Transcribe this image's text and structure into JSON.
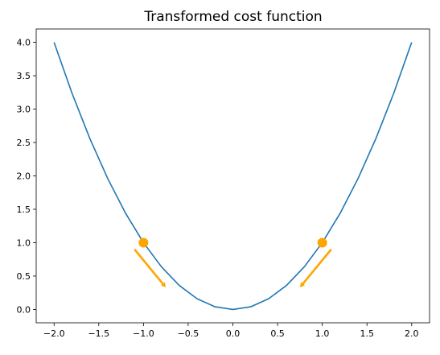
{
  "chart_data": {
    "type": "line",
    "title": "Transformed cost function",
    "xlabel": "",
    "ylabel": "",
    "xlim": [
      -2.2,
      2.2
    ],
    "ylim": [
      -0.2,
      4.2
    ],
    "grid": false,
    "x_ticks": [
      -2.0,
      -1.5,
      -1.0,
      -0.5,
      0.0,
      0.5,
      1.0,
      1.5,
      2.0
    ],
    "x_tick_labels": [
      "−2.0",
      "−1.5",
      "−1.0",
      "−0.5",
      "0.0",
      "0.5",
      "1.0",
      "1.5",
      "2.0"
    ],
    "y_ticks": [
      0.0,
      0.5,
      1.0,
      1.5,
      2.0,
      2.5,
      3.0,
      3.5,
      4.0
    ],
    "y_tick_labels": [
      "0.0",
      "0.5",
      "1.0",
      "1.5",
      "2.0",
      "2.5",
      "3.0",
      "3.5",
      "4.0"
    ],
    "series": [
      {
        "x": [
          -2.0,
          -1.8,
          -1.6,
          -1.4,
          -1.2,
          -1.0,
          -0.8,
          -0.6,
          -0.4,
          -0.2,
          0.0,
          0.2,
          0.4,
          0.6,
          0.8,
          1.0,
          1.2,
          1.4,
          1.6,
          1.8,
          2.0
        ],
        "y": [
          4.0,
          3.24,
          2.56,
          1.96,
          1.44,
          1.0,
          0.64,
          0.36,
          0.16,
          0.04,
          0.0,
          0.04,
          0.16,
          0.36,
          0.64,
          1.0,
          1.44,
          1.96,
          2.56,
          3.24,
          4.0
        ],
        "color": "#1f77b4"
      }
    ],
    "points": [
      {
        "x": -1.0,
        "y": 1.0,
        "color": "#ffa500"
      },
      {
        "x": 1.0,
        "y": 1.0,
        "color": "#ffa500"
      }
    ],
    "arrows": [
      {
        "x1": -1.1,
        "y1": 0.9,
        "x2": -0.75,
        "y2": 0.33,
        "color": "#ffa500"
      },
      {
        "x1": 1.1,
        "y1": 0.9,
        "x2": 0.75,
        "y2": 0.33,
        "color": "#ffa500"
      }
    ]
  }
}
